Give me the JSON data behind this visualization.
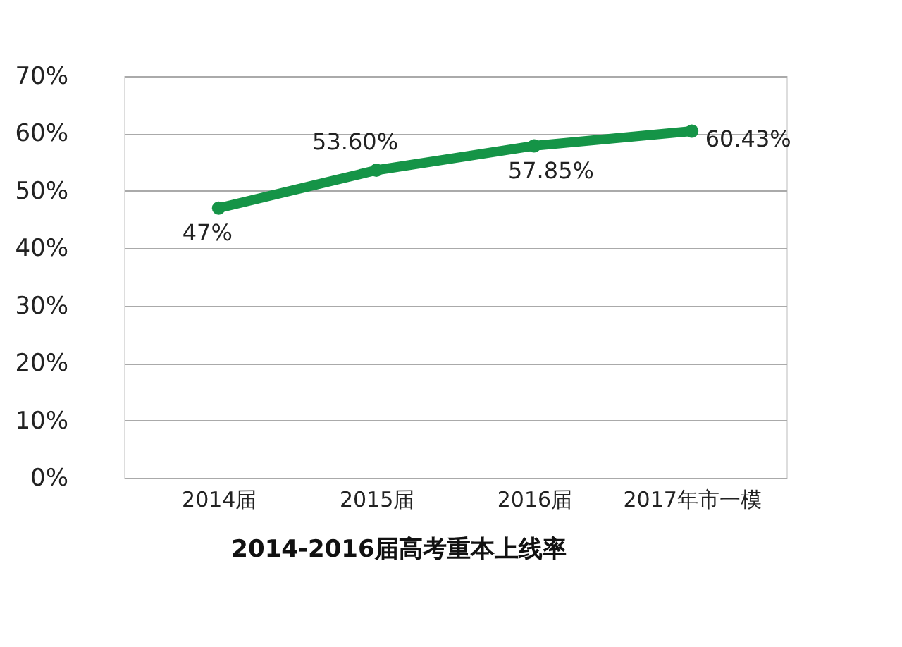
{
  "chart_data": {
    "type": "line",
    "title": "2014-2016届高考重本上线率",
    "categories": [
      "2014届",
      "2015届",
      "2016届",
      "2017年市一模"
    ],
    "series": [
      {
        "color": "#159447",
        "values": [
          47,
          53.6,
          57.85,
          60.43
        ],
        "value_labels": [
          "47%",
          "53.60%",
          "57.85%",
          "60.43%"
        ]
      }
    ],
    "ylim": [
      0,
      70
    ],
    "yticks": [
      {
        "value": 0,
        "label": "0%"
      },
      {
        "value": 10,
        "label": "10%"
      },
      {
        "value": 20,
        "label": "20%"
      },
      {
        "value": 30,
        "label": "30%"
      },
      {
        "value": 40,
        "label": "40%"
      },
      {
        "value": 50,
        "label": "50%"
      },
      {
        "value": 60,
        "label": "60%"
      },
      {
        "value": 70,
        "label": "70%"
      }
    ],
    "grid": "y",
    "marker": "circle",
    "line_style": "solid"
  }
}
